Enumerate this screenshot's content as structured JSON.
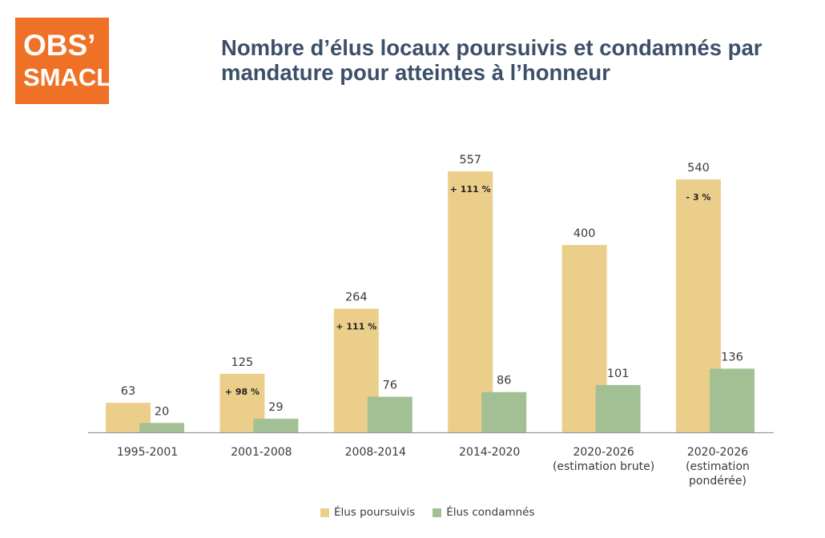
{
  "logo": {
    "line1": "OBS’",
    "line2": "SMACL",
    "color": "#ef7126"
  },
  "title": {
    "line1": "Nombre d’élus locaux poursuivis et condamnés par",
    "line2": "mandature pour atteintes à l’honneur"
  },
  "chart_data": {
    "type": "bar",
    "title": "Nombre d’élus locaux poursuivis et condamnés par mandature pour atteintes à l’honneur",
    "categories": [
      [
        "1995-2001"
      ],
      [
        "2001-2008"
      ],
      [
        "2008-2014"
      ],
      [
        "2014-2020"
      ],
      [
        "2020-2026",
        "(estimation brute)"
      ],
      [
        "2020-2026",
        "(estimation",
        "pondérée)"
      ]
    ],
    "series": [
      {
        "name": "Élus poursuivis",
        "color": "#ecce8b",
        "values": [
          63,
          125,
          264,
          557,
          400,
          540
        ]
      },
      {
        "name": "Élus condamnés",
        "color": "#a3c095",
        "values": [
          20,
          29,
          76,
          86,
          101,
          136
        ]
      }
    ],
    "annotations": [
      "",
      "+ 98 %",
      "+ 111 %",
      "+ 111 %",
      "",
      "- 3 %"
    ],
    "ylim": [
      0,
      600
    ],
    "grid": false,
    "legend": "bottom-center",
    "xlabel": "",
    "ylabel": ""
  }
}
